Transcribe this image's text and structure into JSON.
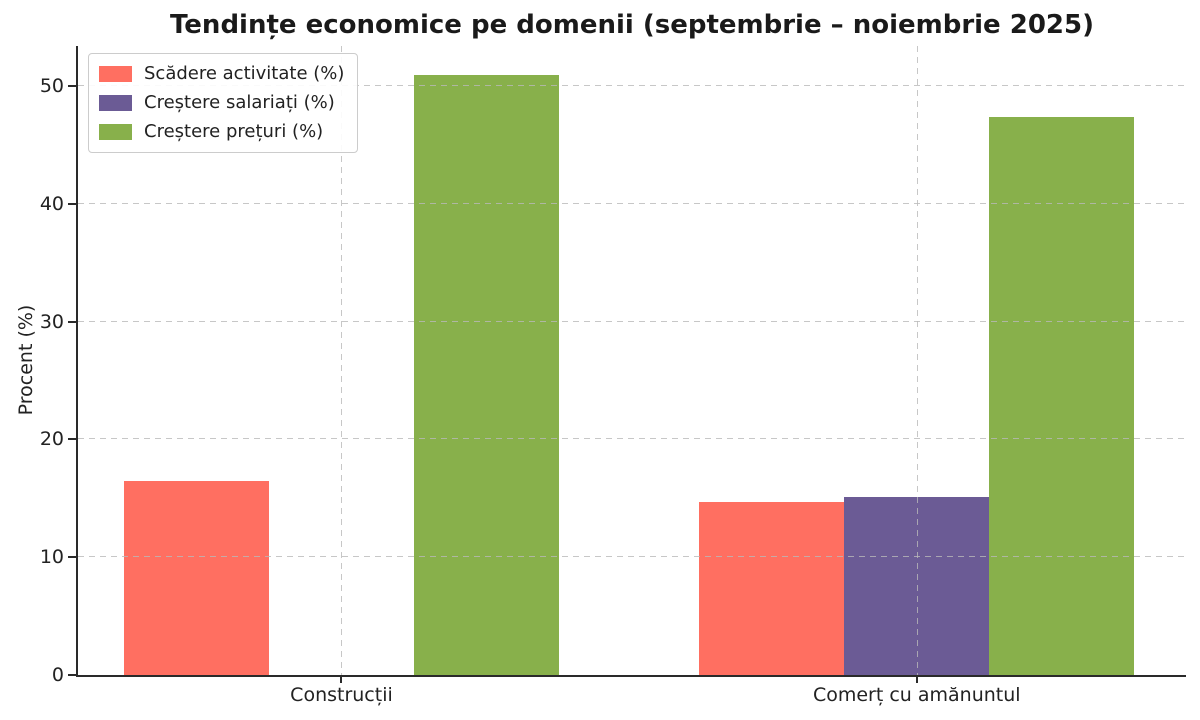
{
  "chart_data": {
    "type": "bar",
    "title": "Tendințe economice pe domenii (septembrie – noiembrie 2025)",
    "xlabel": "",
    "ylabel": "Procent (%)",
    "categories": [
      "Construcții",
      "Comerț cu amănuntul"
    ],
    "series": [
      {
        "name": "Scădere activitate (%)",
        "color": "#FF6F61",
        "values": [
          16.5,
          14.7
        ]
      },
      {
        "name": "Creștere salariați (%)",
        "color": "#6B5B95",
        "values": [
          0,
          15.1
        ]
      },
      {
        "name": "Creștere prețuri (%)",
        "color": "#88B04B",
        "values": [
          50.9,
          47.4
        ]
      }
    ],
    "yticks": [
      0,
      10,
      20,
      30,
      40,
      50
    ],
    "ylim": [
      0,
      53.4
    ],
    "grid": "dashed",
    "legend_position": "upper-left",
    "background": "#ffffff"
  }
}
